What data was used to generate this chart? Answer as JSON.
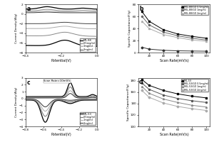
{
  "panel_a": {
    "label": "a",
    "xlabel": "Potential(V)",
    "ylabel": "Current Density(A/g)",
    "xlim": [
      -0.4,
      0.0
    ],
    "ylim": [
      -8,
      2
    ],
    "yticks": [
      -8,
      -6,
      -4,
      -2,
      0,
      2
    ],
    "xticks": [
      -0.4,
      -0.2,
      0.0
    ],
    "legend": [
      "MIL-88",
      "0.5mg/ml",
      "1mg/ml",
      "2mg/ml"
    ]
  },
  "panel_b": {
    "label": "b",
    "xlabel": "Scan Rate(mV/s)",
    "ylabel": "Specific Capacitance(F/g)",
    "xlim": [
      5,
      105
    ],
    "ylim": [
      0,
      80
    ],
    "yticks": [
      0,
      20,
      40,
      60,
      80
    ],
    "xticks": [
      20,
      40,
      60,
      80,
      100
    ],
    "legend": [
      "MIL-88/GO 0.5mg/ml",
      "MIL-88/GO 1mg/ml",
      "MIL-88/GO 2mg/ml"
    ],
    "scan_rates": [
      10,
      20,
      40,
      60,
      80,
      100
    ]
  },
  "panel_c": {
    "label": "c",
    "xlabel": "Potential(V)",
    "ylabel": "Current Density(A/g)",
    "xlim": [
      -0.8,
      0.0
    ],
    "ylim": [
      -4,
      3
    ],
    "yticks": [
      -4,
      -3,
      -2,
      -1,
      0,
      1,
      2,
      3
    ],
    "xticks": [
      -0.8,
      -0.6,
      -0.4,
      -0.2,
      0.0
    ],
    "legend": [
      "MIL-53",
      "0.5mg/ml",
      "1mg/ml",
      "2mg/ml"
    ],
    "scan_rate_text": "Scan Rate=10mV/s"
  },
  "panel_d": {
    "label": "d",
    "xlabel": "Scan Rate(mV/s)",
    "ylabel": "Specific Capacitance(F/g)",
    "xlim": [
      5,
      105
    ],
    "ylim": [
      100,
      185
    ],
    "yticks": [
      100,
      120,
      140,
      160,
      180
    ],
    "xticks": [
      20,
      40,
      60,
      80,
      100
    ],
    "legend": [
      "MIL-53",
      "MIL-53/GO 0.5mg/ml",
      "MIL-53/GO 1mg/ml",
      "MIL-53/GO 2mg/ml"
    ],
    "scan_rates": [
      10,
      20,
      40,
      60,
      80,
      100
    ]
  },
  "line_colors_a": [
    "#000000",
    "#888888",
    "#aaaaaa",
    "#444444"
  ],
  "line_colors_b": [
    "#000000",
    "#666666",
    "#aaaaaa",
    "#333333"
  ],
  "line_colors_c": [
    "#000000",
    "#777777",
    "#aaaaaa",
    "#333333"
  ],
  "line_colors_d": [
    "#000000",
    "#555555",
    "#888888",
    "#aaaaaa"
  ]
}
